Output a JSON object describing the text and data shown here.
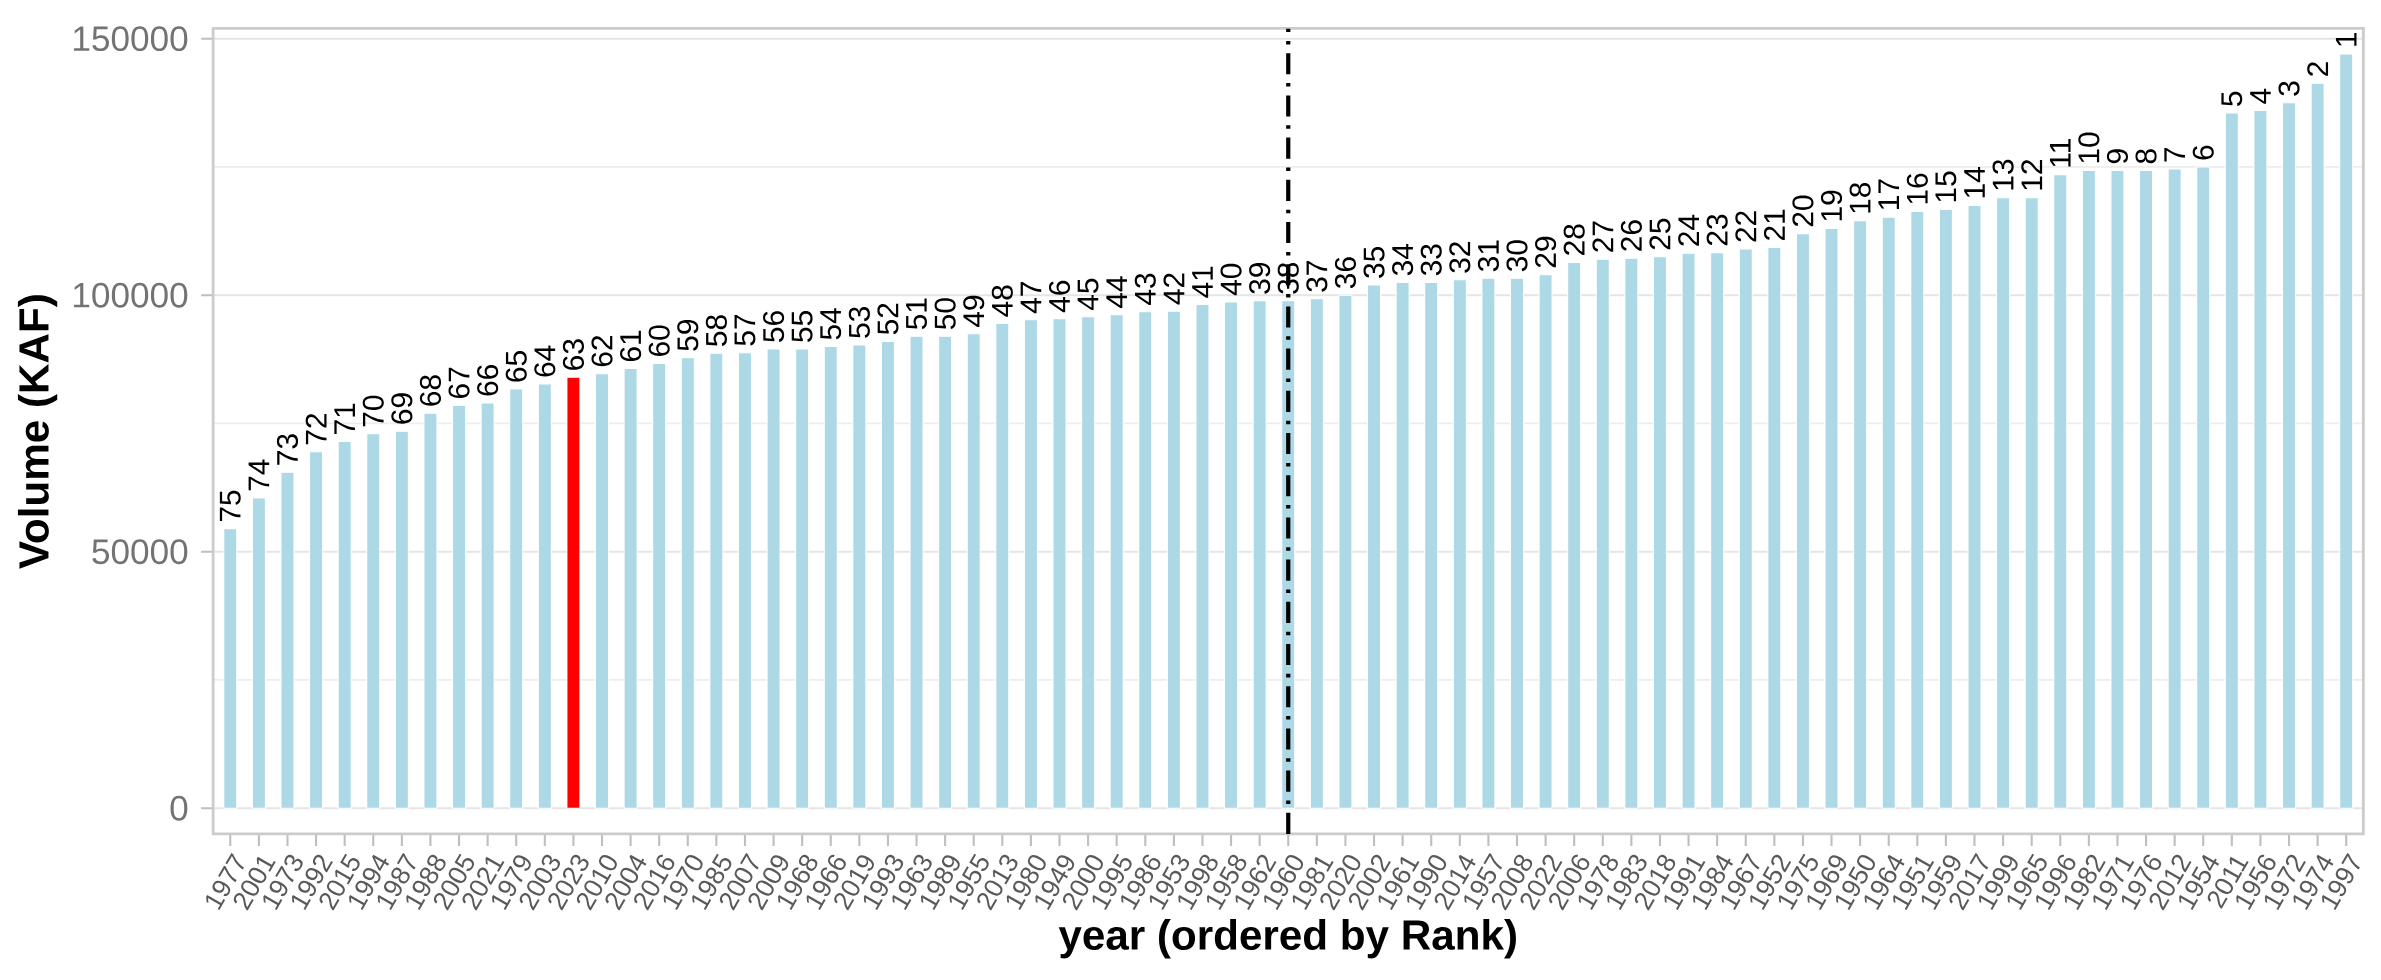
{
  "chart_data": {
    "type": "bar",
    "xlabel": "year (ordered by Rank)",
    "ylabel": "Volume (KAF)",
    "categories": [
      "1977",
      "2001",
      "1973",
      "1992",
      "2015",
      "1994",
      "1987",
      "1988",
      "2005",
      "2021",
      "1979",
      "2003",
      "2023",
      "2010",
      "2004",
      "2016",
      "1970",
      "1985",
      "2007",
      "2009",
      "1968",
      "1966",
      "2019",
      "1993",
      "1963",
      "1989",
      "1955",
      "2013",
      "1980",
      "1949",
      "2000",
      "1995",
      "1986",
      "1953",
      "1998",
      "1958",
      "1962",
      "1960",
      "1981",
      "2020",
      "2002",
      "1961",
      "1990",
      "2014",
      "1957",
      "2008",
      "2022",
      "2006",
      "1978",
      "1983",
      "2018",
      "1991",
      "1984",
      "1967",
      "1952",
      "1975",
      "1969",
      "1950",
      "1964",
      "1951",
      "1959",
      "2017",
      "1999",
      "1965",
      "1996",
      "1982",
      "1971",
      "1976",
      "2012",
      "1954",
      "2011",
      "1956",
      "1972",
      "1974",
      "1997"
    ],
    "values": [
      54500,
      60500,
      65500,
      69500,
      71500,
      73000,
      73500,
      77000,
      78500,
      79000,
      81700,
      82700,
      84000,
      84700,
      85700,
      86700,
      87800,
      88700,
      88800,
      89500,
      89500,
      90000,
      90300,
      91000,
      92000,
      92000,
      92500,
      94500,
      95200,
      95400,
      95800,
      96200,
      96800,
      96900,
      98200,
      98700,
      98900,
      98900,
      99300,
      100000,
      102000,
      102500,
      102500,
      103000,
      103300,
      103300,
      104000,
      106400,
      107000,
      107200,
      107500,
      108200,
      108300,
      109000,
      109300,
      112000,
      113000,
      114500,
      115200,
      116300,
      116700,
      117500,
      119000,
      119000,
      123500,
      124300,
      124300,
      124300,
      124600,
      125000,
      135500,
      136000,
      137500,
      141300,
      147000
    ],
    "annotations": [
      {
        "text": "75",
        "x": "1977",
        "y": 54500
      },
      {
        "text": "74",
        "x": "2001",
        "y": 60500
      },
      {
        "text": "73",
        "x": "1973",
        "y": 65500
      },
      {
        "text": "72",
        "x": "1992",
        "y": 69500
      },
      {
        "text": "71",
        "x": "2015",
        "y": 71500
      },
      {
        "text": "70",
        "x": "1994",
        "y": 73000
      },
      {
        "text": "69",
        "x": "1987",
        "y": 73500
      },
      {
        "text": "68",
        "x": "1988",
        "y": 77000
      },
      {
        "text": "67",
        "x": "2005",
        "y": 78500
      },
      {
        "text": "66",
        "x": "2021",
        "y": 79000
      },
      {
        "text": "65",
        "x": "1979",
        "y": 81700
      },
      {
        "text": "64",
        "x": "2003",
        "y": 82700
      },
      {
        "text": "63",
        "x": "2023",
        "y": 84000
      },
      {
        "text": "62",
        "x": "2010",
        "y": 84700
      },
      {
        "text": "61",
        "x": "2004",
        "y": 85700
      },
      {
        "text": "60",
        "x": "2016",
        "y": 86700
      },
      {
        "text": "59",
        "x": "1970",
        "y": 87800
      },
      {
        "text": "58",
        "x": "1985",
        "y": 88700
      },
      {
        "text": "57",
        "x": "2007",
        "y": 88800
      },
      {
        "text": "56",
        "x": "2009",
        "y": 89500
      },
      {
        "text": "55",
        "x": "1968",
        "y": 89500
      },
      {
        "text": "54",
        "x": "1966",
        "y": 90000
      },
      {
        "text": "53",
        "x": "2019",
        "y": 90300
      },
      {
        "text": "52",
        "x": "1993",
        "y": 91000
      },
      {
        "text": "51",
        "x": "1963",
        "y": 92000
      },
      {
        "text": "50",
        "x": "1989",
        "y": 92000
      },
      {
        "text": "49",
        "x": "1955",
        "y": 92500
      },
      {
        "text": "48",
        "x": "2013",
        "y": 94500
      },
      {
        "text": "47",
        "x": "1980",
        "y": 95200
      },
      {
        "text": "46",
        "x": "1949",
        "y": 95400
      },
      {
        "text": "45",
        "x": "2000",
        "y": 95800
      },
      {
        "text": "44",
        "x": "1995",
        "y": 96200
      },
      {
        "text": "43",
        "x": "1986",
        "y": 96800
      },
      {
        "text": "42",
        "x": "1953",
        "y": 96900
      },
      {
        "text": "41",
        "x": "1998",
        "y": 98200
      },
      {
        "text": "40",
        "x": "1958",
        "y": 98700
      },
      {
        "text": "39",
        "x": "1962",
        "y": 98900
      },
      {
        "text": "38",
        "x": "1960",
        "y": 98900
      },
      {
        "text": "37",
        "x": "1981",
        "y": 99300
      },
      {
        "text": "36",
        "x": "2020",
        "y": 100000
      },
      {
        "text": "35",
        "x": "2002",
        "y": 102000
      },
      {
        "text": "34",
        "x": "1961",
        "y": 102500
      },
      {
        "text": "33",
        "x": "1990",
        "y": 102500
      },
      {
        "text": "32",
        "x": "2014",
        "y": 103000
      },
      {
        "text": "31",
        "x": "1957",
        "y": 103300
      },
      {
        "text": "30",
        "x": "2008",
        "y": 103300
      },
      {
        "text": "29",
        "x": "2022",
        "y": 104000
      },
      {
        "text": "28",
        "x": "2006",
        "y": 106400
      },
      {
        "text": "27",
        "x": "1978",
        "y": 107000
      },
      {
        "text": "26",
        "x": "1983",
        "y": 107200
      },
      {
        "text": "25",
        "x": "2018",
        "y": 107500
      },
      {
        "text": "24",
        "x": "1991",
        "y": 108200
      },
      {
        "text": "23",
        "x": "1984",
        "y": 108300
      },
      {
        "text": "22",
        "x": "1967",
        "y": 109000
      },
      {
        "text": "21",
        "x": "1952",
        "y": 109300
      },
      {
        "text": "20",
        "x": "1975",
        "y": 112000
      },
      {
        "text": "19",
        "x": "1969",
        "y": 113000
      },
      {
        "text": "18",
        "x": "1950",
        "y": 114500
      },
      {
        "text": "17",
        "x": "1964",
        "y": 115200
      },
      {
        "text": "16",
        "x": "1951",
        "y": 116300
      },
      {
        "text": "15",
        "x": "1959",
        "y": 116700
      },
      {
        "text": "14",
        "x": "2017",
        "y": 117500
      },
      {
        "text": "13",
        "x": "1999",
        "y": 119000
      },
      {
        "text": "12",
        "x": "1965",
        "y": 119000
      },
      {
        "text": "11",
        "x": "1996",
        "y": 123500
      },
      {
        "text": "10",
        "x": "1982",
        "y": 124300
      },
      {
        "text": "9",
        "x": "1971",
        "y": 124300
      },
      {
        "text": "8",
        "x": "1976",
        "y": 124300
      },
      {
        "text": "7",
        "x": "2012",
        "y": 124600
      },
      {
        "text": "6",
        "x": "1954",
        "y": 125000
      },
      {
        "text": "5",
        "x": "2011",
        "y": 135500
      },
      {
        "text": "4",
        "x": "1956",
        "y": 136000
      },
      {
        "text": "3",
        "x": "1972",
        "y": 137500
      },
      {
        "text": "2",
        "x": "1974",
        "y": 141300
      },
      {
        "text": "1",
        "x": "1997",
        "y": 147000
      }
    ],
    "colors": [
      "#add8e6",
      "#add8e6",
      "#add8e6",
      "#add8e6",
      "#add8e6",
      "#add8e6",
      "#add8e6",
      "#add8e6",
      "#add8e6",
      "#add8e6",
      "#add8e6",
      "#add8e6",
      "#ff0000",
      "#add8e6",
      "#add8e6",
      "#add8e6",
      "#add8e6",
      "#add8e6",
      "#add8e6",
      "#add8e6",
      "#add8e6",
      "#add8e6",
      "#add8e6",
      "#add8e6",
      "#add8e6",
      "#add8e6",
      "#add8e6",
      "#add8e6",
      "#add8e6",
      "#add8e6",
      "#add8e6",
      "#add8e6",
      "#add8e6",
      "#add8e6",
      "#add8e6",
      "#add8e6",
      "#add8e6",
      "#add8e6",
      "#add8e6",
      "#add8e6",
      "#add8e6",
      "#add8e6",
      "#add8e6",
      "#add8e6",
      "#add8e6",
      "#add8e6",
      "#add8e6",
      "#add8e6",
      "#add8e6",
      "#add8e6",
      "#add8e6",
      "#add8e6",
      "#add8e6",
      "#add8e6",
      "#add8e6",
      "#add8e6",
      "#add8e6",
      "#add8e6",
      "#add8e6",
      "#add8e6",
      "#add8e6",
      "#add8e6",
      "#add8e6",
      "#add8e6",
      "#add8e6",
      "#add8e6",
      "#add8e6",
      "#add8e6",
      "#add8e6",
      "#add8e6",
      "#add8e6",
      "#add8e6",
      "#add8e6",
      "#add8e6",
      "#add8e6"
    ],
    "ylim": [
      -5000,
      152000
    ],
    "yticks": [
      0,
      50000,
      100000,
      150000
    ],
    "grid": "y",
    "ref_lines": [
      {
        "axis": "x",
        "value": "1960",
        "color": "#000000",
        "line_style": "dashdot"
      }
    ]
  }
}
